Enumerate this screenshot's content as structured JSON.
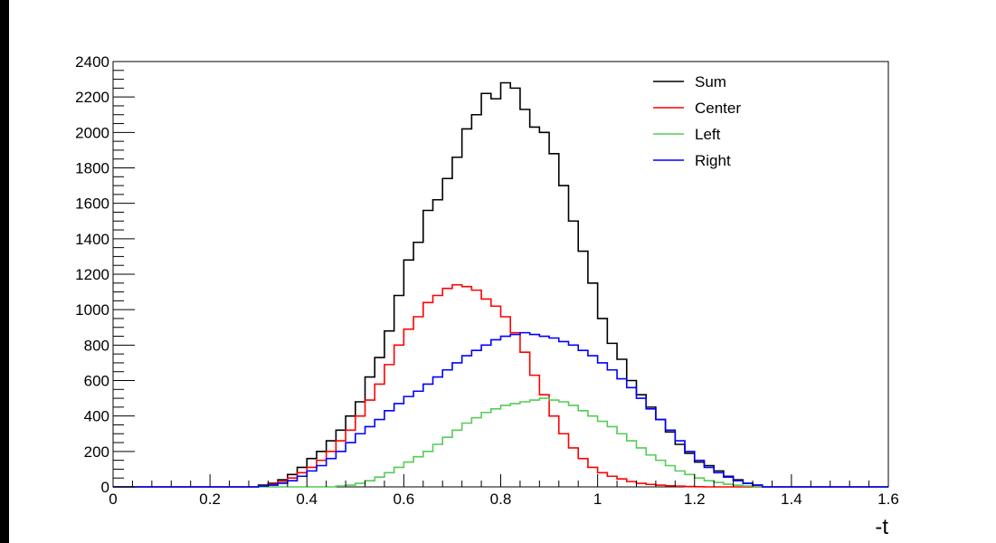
{
  "chart_data": {
    "type": "line",
    "xlabel": "-t",
    "ylabel": "",
    "title": "",
    "xlim": [
      0,
      1.6
    ],
    "ylim": [
      0,
      2400
    ],
    "x_ticks": [
      "0",
      "0.2",
      "0.4",
      "0.6",
      "0.8",
      "1",
      "1.2",
      "1.4",
      "1.6"
    ],
    "y_ticks": [
      "0",
      "200",
      "400",
      "600",
      "800",
      "1000",
      "1200",
      "1400",
      "1600",
      "1800",
      "2000",
      "2200",
      "2400"
    ],
    "legend_position": "top-right",
    "grid": false,
    "bin_edges_start": 0,
    "bin_width": 0.02,
    "series": [
      {
        "name": "Sum",
        "color": "#000000",
        "values": [
          0,
          0,
          0,
          0,
          0,
          0,
          0,
          0,
          0,
          0,
          0,
          0,
          0,
          0,
          0,
          10,
          20,
          40,
          70,
          110,
          160,
          200,
          260,
          320,
          400,
          480,
          620,
          730,
          880,
          1080,
          1280,
          1380,
          1560,
          1620,
          1740,
          1860,
          2020,
          2100,
          2220,
          2190,
          2280,
          2250,
          2130,
          2030,
          2000,
          1880,
          1700,
          1500,
          1330,
          1150,
          950,
          810,
          720,
          600,
          520,
          450,
          380,
          310,
          240,
          190,
          140,
          120,
          90,
          60,
          40,
          20,
          10,
          0
        ]
      },
      {
        "name": "Center",
        "color": "#ff0000",
        "values": [
          0,
          0,
          0,
          0,
          0,
          0,
          0,
          0,
          0,
          0,
          0,
          0,
          0,
          0,
          0,
          5,
          15,
          30,
          50,
          80,
          110,
          150,
          200,
          260,
          320,
          400,
          490,
          580,
          690,
          800,
          890,
          960,
          1040,
          1080,
          1120,
          1140,
          1130,
          1110,
          1060,
          1020,
          960,
          870,
          760,
          630,
          520,
          400,
          300,
          220,
          160,
          110,
          80,
          60,
          45,
          30,
          20,
          14,
          10,
          6,
          4,
          2,
          1,
          0,
          0,
          0,
          0,
          0,
          0,
          0
        ]
      },
      {
        "name": "Left",
        "color": "#55cc55",
        "values": [
          0,
          0,
          0,
          0,
          0,
          0,
          0,
          0,
          0,
          0,
          0,
          0,
          0,
          0,
          0,
          0,
          0,
          0,
          0,
          0,
          0,
          0,
          0,
          5,
          10,
          20,
          35,
          55,
          80,
          110,
          140,
          170,
          200,
          240,
          280,
          320,
          360,
          390,
          420,
          440,
          460,
          470,
          480,
          490,
          500,
          490,
          480,
          460,
          430,
          400,
          370,
          340,
          300,
          260,
          220,
          180,
          150,
          120,
          90,
          70,
          50,
          35,
          25,
          15,
          10,
          5,
          2,
          0
        ]
      },
      {
        "name": "Right",
        "color": "#0000ff",
        "values": [
          0,
          0,
          0,
          0,
          0,
          0,
          0,
          0,
          0,
          0,
          0,
          0,
          0,
          0,
          0,
          5,
          10,
          20,
          35,
          60,
          90,
          120,
          160,
          200,
          250,
          300,
          340,
          380,
          430,
          470,
          510,
          540,
          580,
          620,
          660,
          700,
          740,
          770,
          800,
          830,
          850,
          860,
          870,
          860,
          850,
          840,
          820,
          800,
          770,
          740,
          700,
          660,
          610,
          560,
          500,
          440,
          380,
          320,
          260,
          200,
          150,
          110,
          80,
          55,
          35,
          20,
          10,
          0
        ]
      }
    ]
  }
}
